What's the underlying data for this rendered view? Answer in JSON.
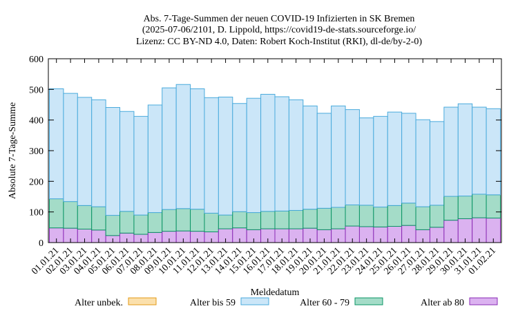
{
  "chart_data": {
    "type": "bar",
    "stacked": true,
    "title_lines": [
      "Abs. 7-Tage-Summen der neuen COVID-19 Infizierten in SK Bremen",
      "(2025-07-06/2101, D. Lippold, https://covid19-de-stats.sourceforge.io/",
      "Lizenz: CC BY-ND 4.0, Daten: Robert Koch-Institut (RKI), dl-de/by-2-0)"
    ],
    "xlabel": "Meldedatum",
    "ylabel": "Absolute 7-Tage-Summe",
    "ylim": [
      0,
      600
    ],
    "yticks": [
      0,
      100,
      200,
      300,
      400,
      500,
      600
    ],
    "grid": false,
    "legend_position": "bottom",
    "categories": [
      "01.01.21",
      "02.01.21",
      "03.01.21",
      "04.01.21",
      "05.01.21",
      "06.01.21",
      "07.01.21",
      "08.01.21",
      "09.01.21",
      "10.01.21",
      "11.01.21",
      "12.01.21",
      "13.01.21",
      "14.01.21",
      "15.01.21",
      "16.01.21",
      "17.01.21",
      "18.01.21",
      "19.01.21",
      "20.01.21",
      "21.01.21",
      "22.01.21",
      "23.01.21",
      "24.01.21",
      "25.01.21",
      "26.01.21",
      "27.01.21",
      "28.01.21",
      "29.01.21",
      "30.01.21",
      "31.01.21",
      "01.02.21"
    ],
    "series": [
      {
        "name": "Alter ab 80",
        "fill": "#dbb2f0",
        "stroke": "#8a2ab4",
        "values": [
          48,
          47,
          44,
          41,
          23,
          31,
          27,
          33,
          37,
          38,
          37,
          35,
          45,
          48,
          42,
          45,
          45,
          45,
          47,
          42,
          45,
          54,
          52,
          51,
          53,
          56,
          42,
          50,
          73,
          78,
          81,
          80
        ]
      },
      {
        "name": "Alter 60 - 79",
        "fill": "#a4dcc8",
        "stroke": "#0a9464",
        "values": [
          95,
          87,
          77,
          76,
          66,
          71,
          63,
          65,
          71,
          73,
          72,
          61,
          45,
          53,
          56,
          57,
          58,
          60,
          62,
          70,
          70,
          69,
          70,
          65,
          68,
          73,
          75,
          72,
          78,
          74,
          77,
          76
        ]
      },
      {
        "name": "Alter bis 59",
        "fill": "#cbe6f8",
        "stroke": "#49aadc",
        "values": [
          359,
          353,
          353,
          349,
          352,
          326,
          322,
          351,
          397,
          405,
          393,
          377,
          385,
          353,
          373,
          382,
          373,
          361,
          337,
          310,
          331,
          311,
          285,
          296,
          305,
          293,
          284,
          273,
          291,
          301,
          284,
          281
        ]
      },
      {
        "name": "Alter unbek.",
        "fill": "#fbe0ac",
        "stroke": "#e39a16",
        "values": [
          0,
          0,
          0,
          0,
          0,
          0,
          0,
          0,
          0,
          0,
          0,
          0,
          0,
          0,
          0,
          0,
          0,
          0,
          0,
          0,
          0,
          0,
          0,
          0,
          0,
          0,
          0,
          0,
          0,
          0,
          0,
          0
        ]
      }
    ],
    "legend_order": [
      "Alter unbek.",
      "Alter bis 59",
      "Alter 60 - 79",
      "Alter ab 80"
    ]
  }
}
